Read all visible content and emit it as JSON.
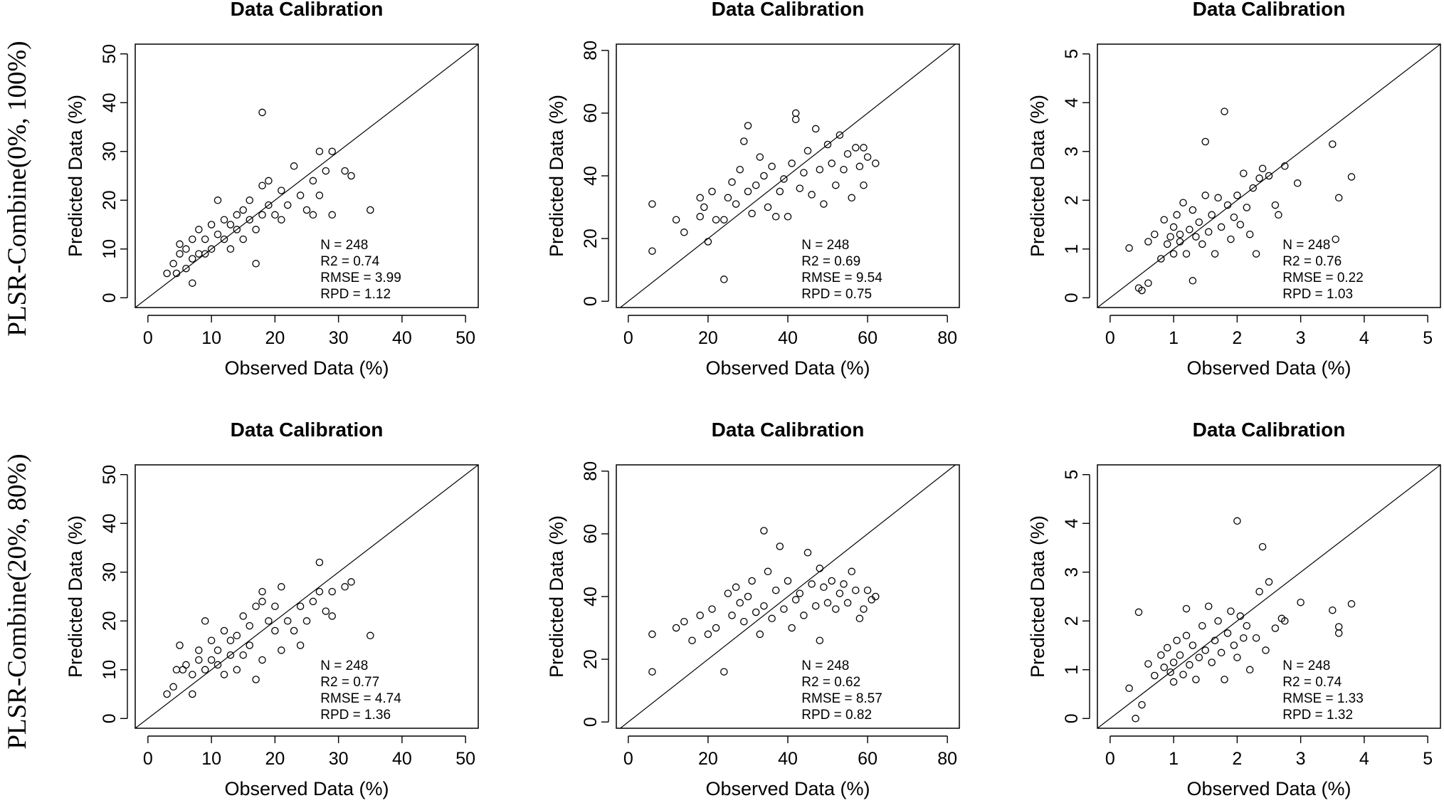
{
  "figure": {
    "row_labels": [
      "PLSR-Combine(0%, 100%)",
      "PLSR-Combine(20%, 80%)"
    ],
    "colors": {
      "ink": "#000000",
      "background": "#ffffff"
    }
  },
  "chart_data": [
    {
      "type": "scatter",
      "title": "Data Calibration",
      "xlabel": "Observed Data (%)",
      "ylabel": "Predicted Data (%)",
      "xlim": [
        -2,
        52
      ],
      "ylim": [
        -2,
        52
      ],
      "xticks": [
        0,
        10,
        20,
        30,
        40,
        50
      ],
      "yticks": [
        0,
        10,
        20,
        30,
        40,
        50
      ],
      "reference_line": "1:1",
      "grid": false,
      "stats": [
        "N = 248",
        "R2 = 0.74",
        "RMSE = 3.99",
        "RPD = 1.12"
      ],
      "n": 248,
      "r2": 0.74,
      "rmse": 3.99,
      "rpd": 1.12,
      "points": [
        [
          3,
          5
        ],
        [
          4,
          7
        ],
        [
          4.5,
          5
        ],
        [
          5,
          9
        ],
        [
          5,
          11
        ],
        [
          6,
          10
        ],
        [
          6,
          6
        ],
        [
          7,
          3
        ],
        [
          7,
          8
        ],
        [
          7,
          12
        ],
        [
          8,
          9
        ],
        [
          8,
          14
        ],
        [
          9,
          9
        ],
        [
          9,
          12
        ],
        [
          10,
          10
        ],
        [
          10,
          15
        ],
        [
          11,
          13
        ],
        [
          11,
          20
        ],
        [
          12,
          12
        ],
        [
          12,
          16
        ],
        [
          13,
          15
        ],
        [
          13,
          10
        ],
        [
          14,
          14
        ],
        [
          14,
          17
        ],
        [
          15,
          12
        ],
        [
          15,
          18
        ],
        [
          16,
          16
        ],
        [
          16,
          20
        ],
        [
          17,
          7
        ],
        [
          17,
          14
        ],
        [
          18,
          23
        ],
        [
          18,
          38
        ],
        [
          18,
          17
        ],
        [
          19,
          24
        ],
        [
          19,
          19
        ],
        [
          20,
          17
        ],
        [
          21,
          16
        ],
        [
          21,
          22
        ],
        [
          22,
          19
        ],
        [
          23,
          27
        ],
        [
          24,
          21
        ],
        [
          25,
          18
        ],
        [
          26,
          24
        ],
        [
          26,
          17
        ],
        [
          27,
          21
        ],
        [
          27,
          30
        ],
        [
          28,
          26
        ],
        [
          29,
          30
        ],
        [
          29,
          17
        ],
        [
          31,
          26
        ],
        [
          32,
          25
        ],
        [
          35,
          18
        ]
      ]
    },
    {
      "type": "scatter",
      "title": "Data Calibration",
      "xlabel": "Observed Data (%)",
      "ylabel": "Predicted Data (%)",
      "xlim": [
        -3,
        83
      ],
      "ylim": [
        -2,
        82
      ],
      "xticks": [
        0,
        20,
        40,
        60,
        80
      ],
      "yticks": [
        0,
        20,
        40,
        60,
        80
      ],
      "reference_line": "1:1",
      "grid": false,
      "stats": [
        "N = 248",
        "R2 = 0.69",
        "RMSE = 9.54",
        "RPD = 0.75"
      ],
      "n": 248,
      "r2": 0.69,
      "rmse": 9.54,
      "rpd": 0.75,
      "points": [
        [
          6,
          31
        ],
        [
          6,
          16
        ],
        [
          12,
          26
        ],
        [
          14,
          22
        ],
        [
          18,
          27
        ],
        [
          18,
          33
        ],
        [
          19,
          30
        ],
        [
          20,
          19
        ],
        [
          21,
          35
        ],
        [
          22,
          26
        ],
        [
          24,
          7
        ],
        [
          24,
          26
        ],
        [
          25,
          33
        ],
        [
          26,
          38
        ],
        [
          27,
          31
        ],
        [
          28,
          42
        ],
        [
          29,
          51
        ],
        [
          30,
          35
        ],
        [
          30,
          56
        ],
        [
          31,
          28
        ],
        [
          32,
          37
        ],
        [
          33,
          46
        ],
        [
          34,
          40
        ],
        [
          35,
          30
        ],
        [
          36,
          43
        ],
        [
          37,
          27
        ],
        [
          38,
          35
        ],
        [
          39,
          39
        ],
        [
          40,
          27
        ],
        [
          41,
          44
        ],
        [
          42,
          60
        ],
        [
          42,
          58
        ],
        [
          43,
          36
        ],
        [
          44,
          41
        ],
        [
          45,
          48
        ],
        [
          46,
          34
        ],
        [
          47,
          55
        ],
        [
          48,
          42
        ],
        [
          49,
          31
        ],
        [
          50,
          50
        ],
        [
          51,
          44
        ],
        [
          52,
          37
        ],
        [
          53,
          53
        ],
        [
          54,
          42
        ],
        [
          55,
          47
        ],
        [
          56,
          33
        ],
        [
          57,
          49
        ],
        [
          58,
          43
        ],
        [
          59,
          37
        ],
        [
          59,
          49
        ],
        [
          60,
          46
        ],
        [
          62,
          44
        ]
      ]
    },
    {
      "type": "scatter",
      "title": "Data Calibration",
      "xlabel": "Observed Data (%)",
      "ylabel": "Predicted Data (%)",
      "xlim": [
        -0.2,
        5.2
      ],
      "ylim": [
        -0.2,
        5.2
      ],
      "xticks": [
        0,
        1,
        2,
        3,
        4,
        5
      ],
      "yticks": [
        0,
        1,
        2,
        3,
        4,
        5
      ],
      "reference_line": "1:1",
      "grid": false,
      "stats": [
        "N = 248",
        "R2 = 0.76",
        "RMSE = 0.22",
        "RPD = 1.03"
      ],
      "n": 248,
      "r2": 0.76,
      "rmse": 0.22,
      "rpd": 1.03,
      "points": [
        [
          0.3,
          1.02
        ],
        [
          0.45,
          0.2
        ],
        [
          0.5,
          0.15
        ],
        [
          0.6,
          0.3
        ],
        [
          0.6,
          1.15
        ],
        [
          0.7,
          1.3
        ],
        [
          0.8,
          0.8
        ],
        [
          0.85,
          1.6
        ],
        [
          0.9,
          1.1
        ],
        [
          0.95,
          1.25
        ],
        [
          1,
          0.9
        ],
        [
          1,
          1.45
        ],
        [
          1.05,
          1.7
        ],
        [
          1.1,
          1.15
        ],
        [
          1.1,
          1.3
        ],
        [
          1.15,
          1.95
        ],
        [
          1.2,
          0.9
        ],
        [
          1.25,
          1.4
        ],
        [
          1.3,
          0.35
        ],
        [
          1.3,
          1.8
        ],
        [
          1.35,
          1.25
        ],
        [
          1.4,
          1.55
        ],
        [
          1.45,
          1.1
        ],
        [
          1.5,
          3.2
        ],
        [
          1.5,
          2.1
        ],
        [
          1.55,
          1.35
        ],
        [
          1.6,
          1.7
        ],
        [
          1.65,
          0.9
        ],
        [
          1.7,
          2.05
        ],
        [
          1.75,
          1.45
        ],
        [
          1.8,
          3.82
        ],
        [
          1.85,
          1.9
        ],
        [
          1.9,
          1.2
        ],
        [
          1.95,
          1.65
        ],
        [
          2,
          2.1
        ],
        [
          2.05,
          1.5
        ],
        [
          2.1,
          2.55
        ],
        [
          2.15,
          1.85
        ],
        [
          2.2,
          1.3
        ],
        [
          2.25,
          2.25
        ],
        [
          2.3,
          0.9
        ],
        [
          2.35,
          2.45
        ],
        [
          2.4,
          2.65
        ],
        [
          2.5,
          2.5
        ],
        [
          2.6,
          1.9
        ],
        [
          2.65,
          1.7
        ],
        [
          2.75,
          2.7
        ],
        [
          2.95,
          2.35
        ],
        [
          3.5,
          3.15
        ],
        [
          3.55,
          1.2
        ],
        [
          3.6,
          2.05
        ],
        [
          3.8,
          2.48
        ]
      ]
    },
    {
      "type": "scatter",
      "title": "Data Calibration",
      "xlabel": "Observed Data (%)",
      "ylabel": "Predicted Data (%)",
      "xlim": [
        -2,
        52
      ],
      "ylim": [
        -2,
        52
      ],
      "xticks": [
        0,
        10,
        20,
        30,
        40,
        50
      ],
      "yticks": [
        0,
        10,
        20,
        30,
        40,
        50
      ],
      "reference_line": "1:1",
      "grid": false,
      "stats": [
        "N = 248",
        "R2 = 0.77",
        "RMSE = 4.74",
        "RPD = 1.36"
      ],
      "n": 248,
      "r2": 0.77,
      "rmse": 4.74,
      "rpd": 1.36,
      "points": [
        [
          3,
          5
        ],
        [
          4,
          6.5
        ],
        [
          4.5,
          10
        ],
        [
          5,
          15
        ],
        [
          5.5,
          10
        ],
        [
          6,
          11
        ],
        [
          7,
          5
        ],
        [
          7,
          9
        ],
        [
          8,
          12
        ],
        [
          8,
          14
        ],
        [
          9,
          10
        ],
        [
          9,
          20
        ],
        [
          10,
          12
        ],
        [
          10,
          16
        ],
        [
          11,
          11
        ],
        [
          11,
          14
        ],
        [
          12,
          9
        ],
        [
          12,
          18
        ],
        [
          13,
          13
        ],
        [
          13,
          16
        ],
        [
          14,
          10
        ],
        [
          14,
          17
        ],
        [
          15,
          13
        ],
        [
          15,
          21
        ],
        [
          16,
          15
        ],
        [
          16,
          19
        ],
        [
          17,
          8
        ],
        [
          17,
          23
        ],
        [
          18,
          12
        ],
        [
          18,
          26
        ],
        [
          18,
          24
        ],
        [
          19,
          20
        ],
        [
          20,
          18
        ],
        [
          20,
          23
        ],
        [
          21,
          14
        ],
        [
          21,
          27
        ],
        [
          22,
          20
        ],
        [
          23,
          18
        ],
        [
          24,
          15
        ],
        [
          24,
          23
        ],
        [
          25,
          20
        ],
        [
          26,
          24
        ],
        [
          27,
          26
        ],
        [
          27,
          32
        ],
        [
          28,
          22
        ],
        [
          29,
          26
        ],
        [
          29,
          21
        ],
        [
          31,
          27
        ],
        [
          32,
          28
        ],
        [
          35,
          17
        ]
      ]
    },
    {
      "type": "scatter",
      "title": "Data Calibration",
      "xlabel": "Observed Data (%)",
      "ylabel": "Predicted Data (%)",
      "xlim": [
        -3,
        83
      ],
      "ylim": [
        -2,
        82
      ],
      "xticks": [
        0,
        20,
        40,
        60,
        80
      ],
      "yticks": [
        0,
        20,
        40,
        60,
        80
      ],
      "reference_line": "1:1",
      "grid": false,
      "stats": [
        "N = 248",
        "R2 = 0.62",
        "RMSE = 8.57",
        "RPD = 0.82"
      ],
      "n": 248,
      "r2": 0.62,
      "rmse": 8.57,
      "rpd": 0.82,
      "points": [
        [
          6,
          28
        ],
        [
          6,
          16
        ],
        [
          12,
          30
        ],
        [
          14,
          32
        ],
        [
          16,
          26
        ],
        [
          18,
          34
        ],
        [
          20,
          28
        ],
        [
          21,
          36
        ],
        [
          22,
          30
        ],
        [
          24,
          16
        ],
        [
          25,
          41
        ],
        [
          26,
          34
        ],
        [
          27,
          43
        ],
        [
          28,
          38
        ],
        [
          29,
          32
        ],
        [
          30,
          40
        ],
        [
          31,
          45
        ],
        [
          32,
          35
        ],
        [
          33,
          28
        ],
        [
          34,
          61
        ],
        [
          34,
          37
        ],
        [
          35,
          48
        ],
        [
          36,
          33
        ],
        [
          37,
          42
        ],
        [
          38,
          56
        ],
        [
          39,
          36
        ],
        [
          40,
          45
        ],
        [
          41,
          30
        ],
        [
          42,
          39
        ],
        [
          43,
          41
        ],
        [
          44,
          34
        ],
        [
          45,
          54
        ],
        [
          46,
          44
        ],
        [
          47,
          37
        ],
        [
          48,
          26
        ],
        [
          48,
          49
        ],
        [
          49,
          43
        ],
        [
          50,
          38
        ],
        [
          51,
          45
        ],
        [
          52,
          36
        ],
        [
          53,
          41
        ],
        [
          54,
          44
        ],
        [
          55,
          38
        ],
        [
          56,
          48
        ],
        [
          57,
          42
        ],
        [
          58,
          33
        ],
        [
          59,
          36
        ],
        [
          60,
          42
        ],
        [
          61,
          39
        ],
        [
          62,
          40
        ]
      ]
    },
    {
      "type": "scatter",
      "title": "Data Calibration",
      "xlabel": "Observed Data (%)",
      "ylabel": "Predicted Data (%)",
      "xlim": [
        -0.2,
        5.2
      ],
      "ylim": [
        -0.2,
        5.2
      ],
      "xticks": [
        0,
        1,
        2,
        3,
        4,
        5
      ],
      "yticks": [
        0,
        1,
        2,
        3,
        4,
        5
      ],
      "reference_line": "1:1",
      "grid": false,
      "stats": [
        "N = 248",
        "R2 = 0.74",
        "RMSE = 1.33",
        "RPD = 1.32"
      ],
      "n": 248,
      "r2": 0.74,
      "rmse": 1.33,
      "rpd": 1.32,
      "points": [
        [
          0.3,
          0.62
        ],
        [
          0.4,
          0.0
        ],
        [
          0.45,
          2.18
        ],
        [
          0.5,
          0.28
        ],
        [
          0.6,
          1.12
        ],
        [
          0.7,
          0.88
        ],
        [
          0.8,
          1.3
        ],
        [
          0.85,
          1.05
        ],
        [
          0.9,
          1.45
        ],
        [
          0.95,
          0.95
        ],
        [
          1,
          1.15
        ],
        [
          1,
          0.75
        ],
        [
          1.05,
          1.6
        ],
        [
          1.1,
          1.3
        ],
        [
          1.15,
          0.9
        ],
        [
          1.2,
          1.7
        ],
        [
          1.2,
          2.25
        ],
        [
          1.25,
          1.1
        ],
        [
          1.3,
          1.5
        ],
        [
          1.35,
          0.8
        ],
        [
          1.4,
          1.25
        ],
        [
          1.45,
          1.9
        ],
        [
          1.5,
          1.4
        ],
        [
          1.55,
          2.3
        ],
        [
          1.6,
          1.15
        ],
        [
          1.65,
          1.6
        ],
        [
          1.7,
          2.0
        ],
        [
          1.75,
          1.35
        ],
        [
          1.8,
          0.8
        ],
        [
          1.85,
          1.75
        ],
        [
          1.9,
          2.2
        ],
        [
          1.95,
          1.5
        ],
        [
          2,
          4.05
        ],
        [
          2,
          1.25
        ],
        [
          2.05,
          2.1
        ],
        [
          2.1,
          1.65
        ],
        [
          2.15,
          1.9
        ],
        [
          2.2,
          1.0
        ],
        [
          2.3,
          1.65
        ],
        [
          2.35,
          2.6
        ],
        [
          2.4,
          3.52
        ],
        [
          2.45,
          1.4
        ],
        [
          2.5,
          2.8
        ],
        [
          2.6,
          1.85
        ],
        [
          2.7,
          2.05
        ],
        [
          2.75,
          2.0
        ],
        [
          3,
          2.38
        ],
        [
          3.5,
          2.22
        ],
        [
          3.6,
          1.88
        ],
        [
          3.6,
          1.75
        ],
        [
          3.8,
          2.35
        ]
      ]
    }
  ]
}
